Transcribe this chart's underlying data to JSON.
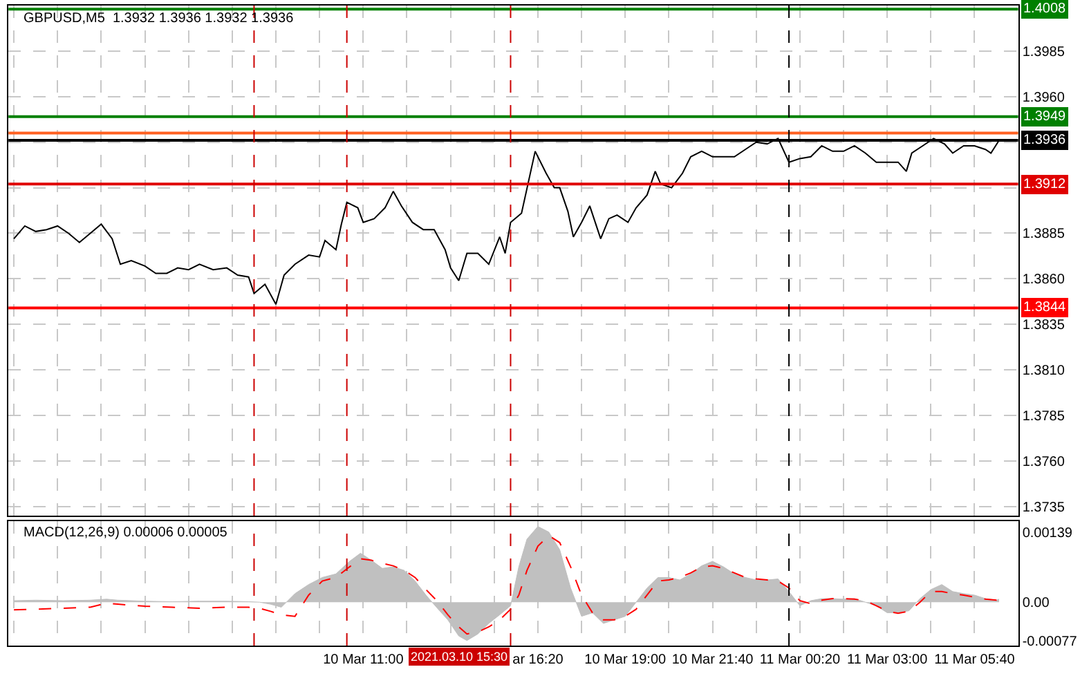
{
  "chart_data": [
    {
      "type": "line",
      "title": "GBPUSD,M5  1.3932 1.3936 1.3932 1.3936",
      "color": "#000000",
      "grid": true,
      "tick_labels": "y",
      "x": [
        "2021-03-10T00:20",
        "2021-03-10T00:40",
        "2021-03-10T01:00",
        "2021-03-10T01:20",
        "2021-03-10T01:40",
        "2021-03-10T02:00",
        "2021-03-10T02:20",
        "2021-03-10T02:40",
        "2021-03-10T03:00",
        "2021-03-10T03:20",
        "2021-03-10T03:35",
        "2021-03-10T03:55",
        "2021-03-10T04:20",
        "2021-03-10T04:40",
        "2021-03-10T05:00",
        "2021-03-10T05:20",
        "2021-03-10T05:40",
        "2021-03-10T06:00",
        "2021-03-10T06:25",
        "2021-03-10T06:50",
        "2021-03-10T07:10",
        "2021-03-10T07:30",
        "2021-03-10T07:40",
        "2021-03-10T08:00",
        "2021-03-10T08:20",
        "2021-03-10T08:35",
        "2021-03-10T08:55",
        "2021-03-10T09:20",
        "2021-03-10T09:40",
        "2021-03-10T09:50",
        "2021-03-10T10:10",
        "2021-03-10T10:20",
        "2021-03-10T10:30",
        "2021-03-10T10:50",
        "2021-03-10T11:00",
        "2021-03-10T11:20",
        "2021-03-10T11:40",
        "2021-03-10T11:55",
        "2021-03-10T12:10",
        "2021-03-10T12:30",
        "2021-03-10T12:50",
        "2021-03-10T13:10",
        "2021-03-10T13:30",
        "2021-03-10T13:40",
        "2021-03-10T13:55",
        "2021-03-10T14:10",
        "2021-03-10T14:30",
        "2021-03-10T14:50",
        "2021-03-10T15:10",
        "2021-03-10T15:20",
        "2021-03-10T15:30",
        "2021-03-10T15:50",
        "2021-03-10T16:15",
        "2021-03-10T16:35",
        "2021-03-10T16:50",
        "2021-03-10T17:00",
        "2021-03-10T17:15",
        "2021-03-10T17:25",
        "2021-03-10T17:40",
        "2021-03-10T17:55",
        "2021-03-10T18:15",
        "2021-03-10T18:30",
        "2021-03-10T18:45",
        "2021-03-10T19:05",
        "2021-03-10T19:20",
        "2021-03-10T19:40",
        "2021-03-10T19:55",
        "2021-03-10T20:05",
        "2021-03-10T20:25",
        "2021-03-10T20:45",
        "2021-03-10T21:00",
        "2021-03-10T21:20",
        "2021-03-10T21:40",
        "2021-03-10T22:00",
        "2021-03-10T22:20",
        "2021-03-10T22:40",
        "2021-03-10T23:00",
        "2021-03-10T23:20",
        "2021-03-10T23:40",
        "2021-03-11T00:00",
        "2021-03-11T00:20",
        "2021-03-11T00:40",
        "2021-03-11T01:00",
        "2021-03-11T01:20",
        "2021-03-11T01:40",
        "2021-03-11T02:00",
        "2021-03-11T02:20",
        "2021-03-11T02:40",
        "2021-03-11T03:00",
        "2021-03-11T03:20",
        "2021-03-11T03:35",
        "2021-03-11T03:45",
        "2021-03-11T04:05",
        "2021-03-11T04:25",
        "2021-03-11T04:45",
        "2021-03-11T05:00",
        "2021-03-11T05:20",
        "2021-03-11T05:40",
        "2021-03-11T06:00",
        "2021-03-11T06:10",
        "2021-03-11T06:25"
      ],
      "values": [
        1.3882,
        1.3889,
        1.3886,
        1.3887,
        1.3889,
        1.3885,
        1.388,
        1.3885,
        1.389,
        1.3882,
        1.3868,
        1.387,
        1.3867,
        1.3863,
        1.3863,
        1.3866,
        1.3865,
        1.3868,
        1.3865,
        1.3866,
        1.3862,
        1.3861,
        1.3852,
        1.3857,
        1.3846,
        1.3862,
        1.3868,
        1.3873,
        1.3872,
        1.3881,
        1.3876,
        1.389,
        1.3902,
        1.3899,
        1.3891,
        1.3893,
        1.3899,
        1.3908,
        1.39,
        1.3891,
        1.3887,
        1.3887,
        1.3876,
        1.3866,
        1.3859,
        1.3874,
        1.3874,
        1.3868,
        1.3883,
        1.3874,
        1.3891,
        1.3896,
        1.393,
        1.3918,
        1.391,
        1.391,
        1.3897,
        1.3883,
        1.3891,
        1.39,
        1.3882,
        1.3893,
        1.3895,
        1.3891,
        1.3899,
        1.3906,
        1.3919,
        1.3912,
        1.391,
        1.3918,
        1.3927,
        1.393,
        1.3927,
        1.3927,
        1.3927,
        1.3931,
        1.3935,
        1.3934,
        1.3937,
        1.3924,
        1.3926,
        1.3927,
        1.3933,
        1.393,
        1.393,
        1.3933,
        1.3929,
        1.3924,
        1.3924,
        1.3924,
        1.3919,
        1.3929,
        1.3933,
        1.3937,
        1.3934,
        1.3929,
        1.3933,
        1.3933,
        1.3931,
        1.3929,
        1.3936
      ],
      "xlim": [
        "2021-03-10T00:10",
        "2021-03-11T07:00"
      ],
      "xticks": [
        {
          "value": "2021-03-10T00:20",
          "label": null
        },
        {
          "value": "2021-03-10T01:40",
          "label": null
        },
        {
          "value": "2021-03-10T03:00",
          "label": null
        },
        {
          "value": "2021-03-10T04:20",
          "label": null
        },
        {
          "value": "2021-03-10T05:40",
          "label": null
        },
        {
          "value": "2021-03-10T07:00",
          "label": null
        },
        {
          "value": "2021-03-10T08:20",
          "label": null
        },
        {
          "value": "2021-03-10T09:40",
          "label": null
        },
        {
          "value": "2021-03-10T11:00",
          "label": null
        },
        {
          "value": "2021-03-10T12:20",
          "label": null
        },
        {
          "value": "2021-03-10T13:40",
          "label": null
        },
        {
          "value": "2021-03-10T15:00",
          "label": null
        },
        {
          "value": "2021-03-10T16:20",
          "label": null
        },
        {
          "value": "2021-03-10T17:40",
          "label": null
        },
        {
          "value": "2021-03-10T19:00",
          "label": null
        },
        {
          "value": "2021-03-10T20:20",
          "label": null
        },
        {
          "value": "2021-03-10T21:40",
          "label": null
        },
        {
          "value": "2021-03-10T23:00",
          "label": null
        },
        {
          "value": "2021-03-11T00:20",
          "label": null
        },
        {
          "value": "2021-03-11T01:40",
          "label": null
        },
        {
          "value": "2021-03-11T03:00",
          "label": null
        },
        {
          "value": "2021-03-11T04:20",
          "label": null
        },
        {
          "value": "2021-03-11T05:40",
          "label": null
        }
      ],
      "ylim": [
        1.373,
        1.401
      ],
      "yticks": [
        1.3735,
        {
          "value": 1.376,
          "label": "1.3760"
        },
        1.3785,
        {
          "value": 1.381,
          "label": "1.3810"
        },
        1.3835,
        {
          "value": 1.386,
          "label": "1.3860"
        },
        1.3885,
        {
          "value": 1.391,
          "label": null
        },
        {
          "value": 1.3935,
          "label": null
        },
        {
          "value": 1.396,
          "label": "1.3960"
        },
        1.3985
      ],
      "ref_lines": [
        {
          "axis": "y",
          "value": 1.4008,
          "label": "1.4008",
          "color": "#008000",
          "line_style": "solid"
        },
        {
          "axis": "y",
          "value": 1.3949,
          "label": "1.3949",
          "color": "#008000",
          "line_style": "solid"
        },
        {
          "axis": "y",
          "value": 1.394,
          "label": null,
          "color": "#ff6020",
          "line_style": "solid"
        },
        {
          "axis": "y",
          "value": 1.3936,
          "label": "1.3936",
          "color": "#000000",
          "line_style": "solid"
        },
        {
          "axis": "y",
          "value": 1.3912,
          "label": "1.3912",
          "color": "#e00000",
          "line_style": "solid"
        },
        {
          "axis": "y",
          "value": 1.3844,
          "label": "1.3844",
          "color": "#ff0000",
          "line_style": "solid"
        },
        {
          "axis": "x",
          "value": "2021-03-10T07:40",
          "label": null,
          "color": "#cc0000",
          "line_style": "dashed"
        },
        {
          "axis": "x",
          "value": "2021-03-10T10:30",
          "label": null,
          "color": "#cc0000",
          "line_style": "dashed"
        },
        {
          "axis": "x",
          "value": "2021-03-10T15:30",
          "label": null,
          "color": "#cc0000",
          "line_style": "dashed"
        },
        {
          "axis": "x",
          "value": "2021-03-11T00:00",
          "label": null,
          "color": "#000000",
          "line_style": "dashed"
        }
      ]
    },
    {
      "type": "area",
      "title": "MACD(12,26,9) 0.00006 0.00005",
      "grid": "x",
      "x": [
        "2021-03-10T00:20",
        "2021-03-10T01:00",
        "2021-03-10T01:50",
        "2021-03-10T02:40",
        "2021-03-10T03:10",
        "2021-03-10T03:30",
        "2021-03-10T04:20",
        "2021-03-10T05:10",
        "2021-03-10T06:00",
        "2021-03-10T06:50",
        "2021-03-10T07:30",
        "2021-03-10T07:50",
        "2021-03-10T08:10",
        "2021-03-10T08:30",
        "2021-03-10T08:55",
        "2021-03-10T09:20",
        "2021-03-10T09:45",
        "2021-03-10T10:10",
        "2021-03-10T10:35",
        "2021-03-10T10:55",
        "2021-03-10T11:15",
        "2021-03-10T11:35",
        "2021-03-10T11:55",
        "2021-03-10T12:15",
        "2021-03-10T12:35",
        "2021-03-10T12:55",
        "2021-03-10T13:15",
        "2021-03-10T13:35",
        "2021-03-10T13:55",
        "2021-03-10T14:10",
        "2021-03-10T14:30",
        "2021-03-10T14:50",
        "2021-03-10T15:10",
        "2021-03-10T15:30",
        "2021-03-10T15:45",
        "2021-03-10T16:00",
        "2021-03-10T16:20",
        "2021-03-10T16:40",
        "2021-03-10T17:00",
        "2021-03-10T17:20",
        "2021-03-10T17:40",
        "2021-03-10T18:00",
        "2021-03-10T18:20",
        "2021-03-10T18:40",
        "2021-03-10T19:00",
        "2021-03-10T19:20",
        "2021-03-10T19:40",
        "2021-03-10T20:00",
        "2021-03-10T20:20",
        "2021-03-10T20:40",
        "2021-03-10T21:00",
        "2021-03-10T21:20",
        "2021-03-10T21:40",
        "2021-03-10T22:00",
        "2021-03-10T22:20",
        "2021-03-10T22:40",
        "2021-03-10T23:00",
        "2021-03-10T23:20",
        "2021-03-10T23:40",
        "2021-03-11T00:00",
        "2021-03-11T00:20",
        "2021-03-11T00:40",
        "2021-03-11T01:00",
        "2021-03-11T01:20",
        "2021-03-11T01:40",
        "2021-03-11T02:00",
        "2021-03-11T02:20",
        "2021-03-11T02:40",
        "2021-03-11T03:00",
        "2021-03-11T03:20",
        "2021-03-11T03:40",
        "2021-03-11T04:00",
        "2021-03-11T04:20",
        "2021-03-11T04:40",
        "2021-03-11T05:00",
        "2021-03-11T05:20",
        "2021-03-11T05:40",
        "2021-03-11T06:00",
        "2021-03-11T06:20",
        "2021-03-11T06:25"
      ],
      "series": [
        {
          "type": "area",
          "color": "#c0c0c0",
          "values": [
            3e-05,
            4e-05,
            3e-05,
            4e-05,
            6e-05,
            4e-05,
            2e-05,
            1e-05,
            2e-05,
            2e-05,
            1e-05,
            0.0,
            -4e-05,
            -0.0001,
            0.00017,
            0.00035,
            0.00049,
            0.00056,
            0.00081,
            0.00097,
            0.00083,
            0.00067,
            0.0007,
            0.00063,
            0.00042,
            0.00014,
            -0.00011,
            -0.00035,
            -0.00067,
            -0.00076,
            -0.00063,
            -0.00042,
            -0.00025,
            -7e-05,
            0.0007,
            0.00125,
            0.0015,
            0.00139,
            0.00104,
            0.00028,
            -0.00028,
            -0.00021,
            -0.00042,
            -0.00035,
            -0.00028,
            0.0,
            0.00028,
            0.00049,
            0.00049,
            0.00044,
            0.00056,
            0.00072,
            0.00081,
            0.0007,
            0.00056,
            0.00049,
            0.00044,
            0.00044,
            0.00046,
            0.00021,
            -7e-05,
            3e-05,
            7e-05,
            7e-05,
            6e-05,
            7e-05,
            0.0,
            -7e-05,
            -0.00021,
            -0.00021,
            -0.00017,
            7e-05,
            0.00025,
            0.00035,
            0.00021,
            0.00017,
            0.00014,
            7e-05,
            4e-05,
            6e-05
          ]
        },
        {
          "type": "line",
          "color": "#ff0000",
          "line_style": "dashed",
          "values": [
            -0.00015,
            -0.00014,
            -0.00012,
            -0.0001,
            -2e-05,
            -4e-05,
            -8e-05,
            -0.0001,
            -0.00012,
            -0.0001,
            -0.0001,
            -0.00012,
            -0.00018,
            -0.00025,
            -0.00028,
            0.00014,
            0.00042,
            0.00049,
            0.0007,
            0.00086,
            0.00083,
            0.00077,
            0.00072,
            0.00063,
            0.00049,
            0.00025,
            3e-05,
            -0.00025,
            -0.00049,
            -0.00063,
            -0.00059,
            -0.00049,
            -0.00035,
            -0.00014,
            0.00014,
            0.00063,
            0.00111,
            0.00132,
            0.00118,
            0.0007,
            0.00014,
            -0.00021,
            -0.00035,
            -0.00035,
            -0.00028,
            -0.00014,
            0.00014,
            0.00042,
            0.00044,
            0.00049,
            0.00058,
            0.0007,
            0.00072,
            0.00067,
            0.00058,
            0.00049,
            0.00046,
            0.00044,
            0.00042,
            0.00028,
            3e-05,
            -3e-05,
            4e-05,
            7e-05,
            7e-05,
            6e-05,
            3e-05,
            -7e-05,
            -0.00018,
            -0.00022,
            -0.00018,
            0.0,
            0.00021,
            0.00021,
            0.00017,
            0.00014,
            0.0001,
            6e-05,
            4e-05,
            5e-05
          ]
        }
      ],
      "xlim": [
        "2021-03-10T00:10",
        "2021-03-11T07:00"
      ],
      "xticks": [
        {
          "value": "2021-03-10T00:20",
          "label": null
        },
        {
          "value": "2021-03-10T01:40",
          "label": null
        },
        {
          "value": "2021-03-10T03:00",
          "label": null
        },
        {
          "value": "2021-03-10T04:20",
          "label": null
        },
        {
          "value": "2021-03-10T05:40",
          "label": null
        },
        {
          "value": "2021-03-10T07:00",
          "label": null
        },
        {
          "value": "2021-03-10T08:20",
          "label": null
        },
        {
          "value": "2021-03-10T09:40",
          "label": null
        },
        {
          "value": "2021-03-10T11:00",
          "label": "10 Mar 11:00"
        },
        {
          "value": "2021-03-10T12:20",
          "label": null
        },
        {
          "value": "2021-03-10T13:40",
          "label": null
        },
        {
          "value": "2021-03-10T15:00",
          "label": null
        },
        {
          "value": "2021-03-10T16:20",
          "label": "ar 16:20"
        },
        {
          "value": "2021-03-10T17:40",
          "label": null
        },
        {
          "value": "2021-03-10T19:00",
          "label": "10 Mar 19:00"
        },
        {
          "value": "2021-03-10T20:20",
          "label": null
        },
        {
          "value": "2021-03-10T21:40",
          "label": "10 Mar 21:40"
        },
        {
          "value": "2021-03-10T23:00",
          "label": null
        },
        {
          "value": "2021-03-11T00:20",
          "label": "11 Mar 00:20"
        },
        {
          "value": "2021-03-11T01:40",
          "label": null
        },
        {
          "value": "2021-03-11T03:00",
          "label": "11 Mar 03:00"
        },
        {
          "value": "2021-03-11T04:20",
          "label": null
        },
        {
          "value": "2021-03-11T05:40",
          "label": "11 Mar 05:40"
        }
      ],
      "ylim": [
        -0.00086,
        0.0016
      ],
      "yticks": [
        -0.00077,
        {
          "value": 0,
          "label": "0.00"
        },
        0.00139
      ],
      "ref_lines": [
        {
          "axis": "x",
          "value": "2021-03-10T07:40",
          "label": null,
          "color": "#cc0000",
          "line_style": "dashed"
        },
        {
          "axis": "x",
          "value": "2021-03-10T10:30",
          "label": null,
          "color": "#cc0000",
          "line_style": "dashed"
        },
        {
          "axis": "x",
          "value": "2021-03-10T15:30",
          "label": "2021.03.10 15:30",
          "color": "#cc0000",
          "line_style": "dashed"
        },
        {
          "axis": "x",
          "value": "2021-03-11T00:00",
          "label": null,
          "color": "#000000",
          "line_style": "dashed"
        }
      ]
    }
  ]
}
